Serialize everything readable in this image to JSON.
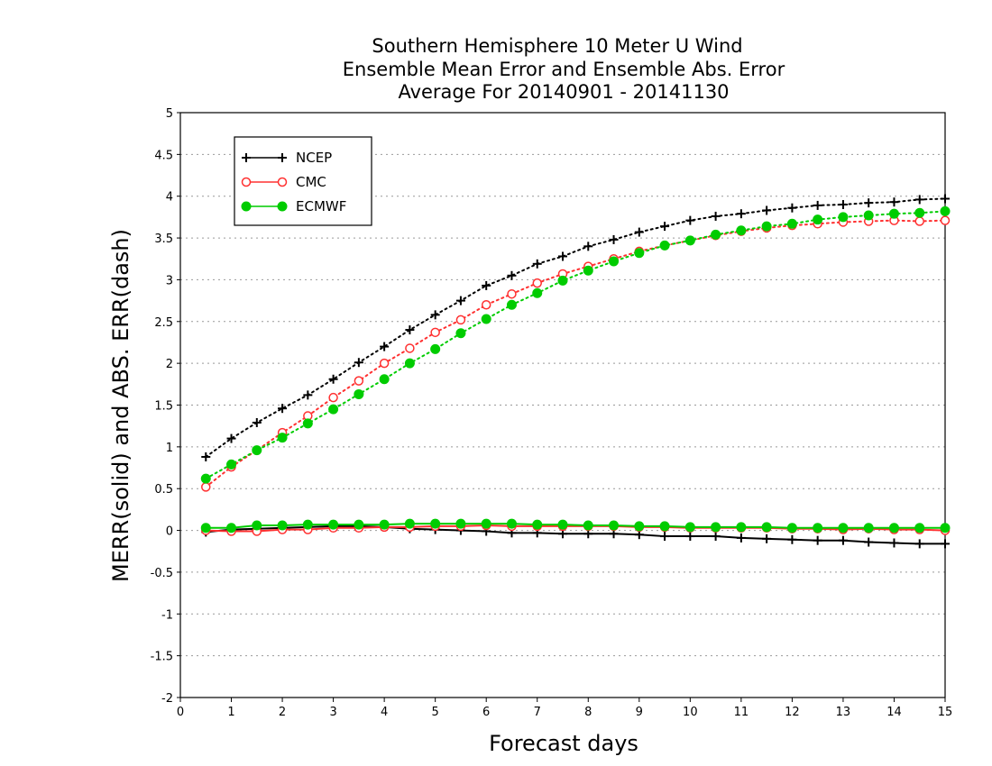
{
  "chart_data": {
    "type": "line",
    "title_lines": [
      "Southern Hemisphere 10 Meter U Wind",
      "Ensemble Mean Error and Ensemble Abs. Error",
      "Average For 20140901 - 20141130"
    ],
    "xlabel": "Forecast days",
    "ylabel": "MERR(solid) and ABS. ERR(dash)",
    "xlim": [
      0,
      15
    ],
    "ylim": [
      -2,
      5
    ],
    "xticks": [
      "0",
      "1",
      "2",
      "3",
      "4",
      "5",
      "6",
      "7",
      "8",
      "9",
      "10",
      "11",
      "12",
      "13",
      "14",
      "15"
    ],
    "yticks": [
      "5",
      "4.5",
      "4",
      "3.5",
      "3",
      "2.5",
      "2",
      "1.5",
      "1",
      "0.5",
      "0",
      "-0.5",
      "-1",
      "-1.5",
      "-2"
    ],
    "grid": "horizontal dotted",
    "legend_position": "top-left",
    "x": [
      0.5,
      1,
      1.5,
      2,
      2.5,
      3,
      3.5,
      4,
      4.5,
      5,
      5.5,
      6,
      6.5,
      7,
      7.5,
      8,
      8.5,
      9,
      9.5,
      10,
      10.5,
      11,
      11.5,
      12,
      12.5,
      13,
      13.5,
      14,
      14.5,
      15
    ],
    "series": [
      {
        "name": "NCEP",
        "color": "#000000",
        "marker": "plus",
        "merr": [
          -0.02,
          0.01,
          0.02,
          0.03,
          0.04,
          0.05,
          0.05,
          0.04,
          0.02,
          0.01,
          0.0,
          -0.01,
          -0.03,
          -0.03,
          -0.04,
          -0.04,
          -0.04,
          -0.05,
          -0.07,
          -0.07,
          -0.07,
          -0.09,
          -0.1,
          -0.11,
          -0.12,
          -0.12,
          -0.14,
          -0.15,
          -0.16,
          -0.16
        ],
        "abs_err": [
          0.88,
          1.1,
          1.29,
          1.46,
          1.62,
          1.81,
          2.01,
          2.2,
          2.4,
          2.58,
          2.75,
          2.93,
          3.05,
          3.19,
          3.28,
          3.4,
          3.48,
          3.57,
          3.64,
          3.71,
          3.76,
          3.79,
          3.83,
          3.86,
          3.89,
          3.9,
          3.92,
          3.93,
          3.96,
          3.97
        ]
      },
      {
        "name": "CMC",
        "color": "#ff3030",
        "marker": "open-circle",
        "merr": [
          0.0,
          -0.01,
          -0.01,
          0.01,
          0.01,
          0.03,
          0.03,
          0.04,
          0.04,
          0.05,
          0.05,
          0.06,
          0.05,
          0.05,
          0.05,
          0.05,
          0.05,
          0.04,
          0.04,
          0.03,
          0.03,
          0.03,
          0.03,
          0.02,
          0.02,
          0.01,
          0.02,
          0.01,
          0.01,
          0.0
        ],
        "abs_err": [
          0.52,
          0.76,
          0.96,
          1.17,
          1.37,
          1.59,
          1.79,
          2.0,
          2.18,
          2.37,
          2.52,
          2.7,
          2.83,
          2.96,
          3.07,
          3.16,
          3.25,
          3.34,
          3.41,
          3.47,
          3.53,
          3.58,
          3.62,
          3.65,
          3.67,
          3.69,
          3.7,
          3.71,
          3.7,
          3.71
        ]
      },
      {
        "name": "ECMWF",
        "color": "#00cc00",
        "marker": "filled-circle",
        "merr": [
          0.03,
          0.03,
          0.06,
          0.06,
          0.07,
          0.07,
          0.07,
          0.07,
          0.08,
          0.08,
          0.08,
          0.08,
          0.08,
          0.07,
          0.07,
          0.06,
          0.06,
          0.05,
          0.05,
          0.04,
          0.04,
          0.04,
          0.04,
          0.03,
          0.03,
          0.03,
          0.03,
          0.03,
          0.03,
          0.03
        ],
        "abs_err": [
          0.62,
          0.79,
          0.96,
          1.11,
          1.28,
          1.45,
          1.63,
          1.81,
          2.0,
          2.17,
          2.36,
          2.53,
          2.7,
          2.84,
          2.99,
          3.11,
          3.22,
          3.32,
          3.41,
          3.47,
          3.54,
          3.59,
          3.64,
          3.67,
          3.72,
          3.75,
          3.77,
          3.79,
          3.8,
          3.82
        ]
      }
    ]
  }
}
